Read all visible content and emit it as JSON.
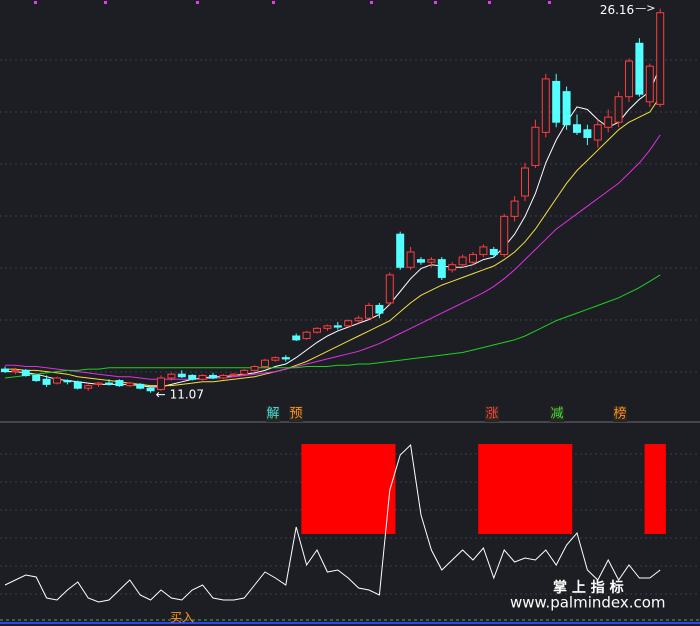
{
  "chart_data": [
    {
      "type": "candlestick",
      "ylim": [
        10,
        26.5
      ],
      "up_color": "#ff3c3c",
      "down_color": "#54ffff",
      "ohlc": [
        [
          12.0,
          12.1,
          11.85,
          11.9
        ],
        [
          11.9,
          12.05,
          11.8,
          11.95
        ],
        [
          11.95,
          12.0,
          11.7,
          11.75
        ],
        [
          11.75,
          11.8,
          11.5,
          11.55
        ],
        [
          11.6,
          11.75,
          11.3,
          11.4
        ],
        [
          11.45,
          11.7,
          11.4,
          11.65
        ],
        [
          11.55,
          11.6,
          11.4,
          11.5
        ],
        [
          11.5,
          11.55,
          11.2,
          11.25
        ],
        [
          11.25,
          11.4,
          11.15,
          11.35
        ],
        [
          11.4,
          11.5,
          11.3,
          11.45
        ],
        [
          11.45,
          11.6,
          11.35,
          11.4
        ],
        [
          11.55,
          11.6,
          11.3,
          11.35
        ],
        [
          11.35,
          11.5,
          11.3,
          11.45
        ],
        [
          11.4,
          11.45,
          11.2,
          11.25
        ],
        [
          11.25,
          11.3,
          11.07,
          11.15
        ],
        [
          11.2,
          11.75,
          11.15,
          11.65
        ],
        [
          11.65,
          11.85,
          11.55,
          11.8
        ],
        [
          11.8,
          11.95,
          11.65,
          11.7
        ],
        [
          11.75,
          11.8,
          11.55,
          11.6
        ],
        [
          11.6,
          11.8,
          11.55,
          11.75
        ],
        [
          11.75,
          11.85,
          11.6,
          11.65
        ],
        [
          11.65,
          11.8,
          11.6,
          11.75
        ],
        [
          11.75,
          11.85,
          11.7,
          11.8
        ],
        [
          11.8,
          12.0,
          11.75,
          11.95
        ],
        [
          11.95,
          12.15,
          11.9,
          12.1
        ],
        [
          12.1,
          12.4,
          12.05,
          12.35
        ],
        [
          12.35,
          12.5,
          12.3,
          12.45
        ],
        [
          12.45,
          12.55,
          12.3,
          12.4
        ],
        [
          13.3,
          13.4,
          13.1,
          13.15
        ],
        [
          13.2,
          13.5,
          13.15,
          13.45
        ],
        [
          13.45,
          13.65,
          13.4,
          13.6
        ],
        [
          13.6,
          13.75,
          13.5,
          13.7
        ],
        [
          13.7,
          13.85,
          13.55,
          13.65
        ],
        [
          13.7,
          13.95,
          13.65,
          13.9
        ],
        [
          13.9,
          14.1,
          13.8,
          14.0
        ],
        [
          14.0,
          14.6,
          13.95,
          14.5
        ],
        [
          14.5,
          14.6,
          14.0,
          14.2
        ],
        [
          14.6,
          15.8,
          14.5,
          15.7
        ],
        [
          17.3,
          17.4,
          15.9,
          16.0
        ],
        [
          16.0,
          16.8,
          15.9,
          16.6
        ],
        [
          16.3,
          16.4,
          16.1,
          16.2
        ],
        [
          16.2,
          16.4,
          16.0,
          16.3
        ],
        [
          16.3,
          16.4,
          15.5,
          15.6
        ],
        [
          15.9,
          16.2,
          15.8,
          16.1
        ],
        [
          16.1,
          16.5,
          16.0,
          16.4
        ],
        [
          16.2,
          16.6,
          16.1,
          16.5
        ],
        [
          16.5,
          16.9,
          16.4,
          16.8
        ],
        [
          16.7,
          16.8,
          16.4,
          16.5
        ],
        [
          16.5,
          18.1,
          16.4,
          18.0
        ],
        [
          18.0,
          18.8,
          17.8,
          18.6
        ],
        [
          18.8,
          20.1,
          18.6,
          19.9
        ],
        [
          20.0,
          21.8,
          19.9,
          21.5
        ],
        [
          21.3,
          23.6,
          21.1,
          23.4
        ],
        [
          23.3,
          23.6,
          21.5,
          21.7
        ],
        [
          22.9,
          23.1,
          21.4,
          21.6
        ],
        [
          21.6,
          22.0,
          21.2,
          21.3
        ],
        [
          21.4,
          21.6,
          20.8,
          21.1
        ],
        [
          21.0,
          21.8,
          20.7,
          21.6
        ],
        [
          21.5,
          22.2,
          21.3,
          21.9
        ],
        [
          21.7,
          22.9,
          21.5,
          22.7
        ],
        [
          22.7,
          24.2,
          22.5,
          24.1
        ],
        [
          24.8,
          25.0,
          22.7,
          22.8
        ],
        [
          22.5,
          24.0,
          22.3,
          23.9
        ],
        [
          22.4,
          26.16,
          22.3,
          26.0
        ]
      ],
      "lines": [
        {
          "color": "#ffffff",
          "values": [
            11.9,
            11.9,
            11.85,
            11.8,
            11.7,
            11.6,
            11.55,
            11.5,
            11.45,
            11.4,
            11.4,
            11.4,
            11.4,
            11.35,
            11.3,
            11.3,
            11.4,
            11.5,
            11.6,
            11.65,
            11.7,
            11.7,
            11.75,
            11.8,
            11.85,
            11.95,
            12.1,
            12.2,
            12.45,
            12.75,
            13.05,
            13.3,
            13.5,
            13.65,
            13.8,
            13.95,
            14.15,
            14.55,
            15.05,
            15.55,
            15.95,
            16.1,
            16.05,
            16.0,
            16.0,
            16.1,
            16.3,
            16.4,
            16.8,
            17.3,
            18.0,
            18.9,
            20.1,
            21.0,
            21.7,
            22.3,
            22.2,
            21.8,
            21.5,
            21.7,
            22.2,
            22.6,
            22.9,
            23.9
          ]
        },
        {
          "color": "#f0e040",
          "values": [
            12.0,
            12.0,
            11.95,
            11.95,
            11.9,
            11.85,
            11.8,
            11.7,
            11.65,
            11.6,
            11.55,
            11.5,
            11.45,
            11.4,
            11.35,
            11.35,
            11.35,
            11.4,
            11.45,
            11.5,
            11.5,
            11.55,
            11.6,
            11.65,
            11.7,
            11.8,
            11.9,
            12.0,
            12.15,
            12.3,
            12.5,
            12.7,
            12.9,
            13.1,
            13.3,
            13.5,
            13.7,
            13.9,
            14.25,
            14.6,
            14.9,
            15.1,
            15.3,
            15.45,
            15.6,
            15.75,
            15.9,
            16.05,
            16.3,
            16.6,
            17.0,
            17.5,
            18.1,
            18.7,
            19.3,
            19.8,
            20.2,
            20.6,
            21.0,
            21.4,
            21.7,
            21.9,
            22.1,
            22.7
          ]
        },
        {
          "color": "#e030e0",
          "values": [
            12.15,
            12.15,
            12.1,
            12.1,
            12.05,
            12.0,
            11.95,
            11.9,
            11.85,
            11.8,
            11.75,
            11.7,
            11.7,
            11.65,
            11.6,
            11.6,
            11.6,
            11.6,
            11.6,
            11.6,
            11.65,
            11.65,
            11.7,
            11.75,
            11.8,
            11.85,
            11.9,
            12.0,
            12.1,
            12.2,
            12.3,
            12.4,
            12.5,
            12.6,
            12.7,
            12.85,
            13.0,
            13.2,
            13.4,
            13.6,
            13.8,
            14.0,
            14.2,
            14.4,
            14.6,
            14.8,
            15.0,
            15.25,
            15.55,
            15.9,
            16.3,
            16.7,
            17.1,
            17.5,
            17.8,
            18.1,
            18.4,
            18.7,
            19.0,
            19.3,
            19.7,
            20.1,
            20.6,
            21.2
          ]
        },
        {
          "color": "#20d020",
          "values": [
            11.65,
            11.7,
            11.75,
            11.8,
            11.85,
            11.9,
            11.95,
            11.95,
            12.0,
            12.0,
            12.05,
            12.05,
            12.05,
            12.05,
            12.05,
            12.05,
            12.05,
            12.05,
            12.05,
            12.05,
            12.05,
            12.05,
            12.05,
            12.05,
            12.05,
            12.05,
            12.05,
            12.05,
            12.05,
            12.1,
            12.1,
            12.1,
            12.15,
            12.15,
            12.2,
            12.2,
            12.25,
            12.3,
            12.35,
            12.4,
            12.45,
            12.5,
            12.55,
            12.6,
            12.65,
            12.75,
            12.85,
            12.95,
            13.05,
            13.15,
            13.3,
            13.5,
            13.7,
            13.9,
            14.05,
            14.2,
            14.35,
            14.5,
            14.65,
            14.8,
            15.0,
            15.2,
            15.45,
            15.7
          ]
        }
      ],
      "signals": [
        {
          "label": "解",
          "color": "#40e0e0"
        },
        {
          "label": "预",
          "color": "#ff9020"
        },
        {
          "label": "涨",
          "color": "#ff4040"
        },
        {
          "label": "减",
          "color": "#40e040"
        },
        {
          "label": "榜",
          "color": "#ff9020"
        }
      ]
    },
    {
      "type": "line",
      "ylim": [
        0,
        200
      ],
      "color": "#ffffff",
      "values": [
        35,
        40,
        45,
        43,
        22,
        20,
        30,
        38,
        22,
        18,
        20,
        30,
        40,
        25,
        20,
        30,
        22,
        20,
        30,
        35,
        22,
        20,
        20,
        22,
        35,
        48,
        42,
        35,
        93,
        55,
        70,
        48,
        50,
        42,
        32,
        30,
        25,
        130,
        165,
        175,
        105,
        70,
        50,
        60,
        70,
        60,
        72,
        42,
        70,
        58,
        62,
        60,
        70,
        55,
        75,
        87,
        50,
        40,
        60,
        40,
        55,
        42,
        42,
        50
      ],
      "signal": {
        "color": "#ff0000",
        "base": 86,
        "values": [
          null,
          null,
          null,
          null,
          null,
          null,
          null,
          null,
          null,
          null,
          null,
          null,
          null,
          null,
          null,
          null,
          null,
          null,
          null,
          null,
          null,
          null,
          null,
          null,
          null,
          null,
          null,
          null,
          null,
          176,
          176,
          176,
          176,
          176,
          176,
          176,
          176,
          176,
          null,
          null,
          null,
          null,
          null,
          null,
          null,
          null,
          176,
          176,
          176,
          176,
          176,
          176,
          176,
          176,
          176,
          null,
          null,
          null,
          null,
          null,
          null,
          null,
          176,
          176
        ]
      },
      "annotation": "买入"
    }
  ],
  "watermark": {
    "title": "掌 上 指 标",
    "url": "www.palmindex.com"
  }
}
